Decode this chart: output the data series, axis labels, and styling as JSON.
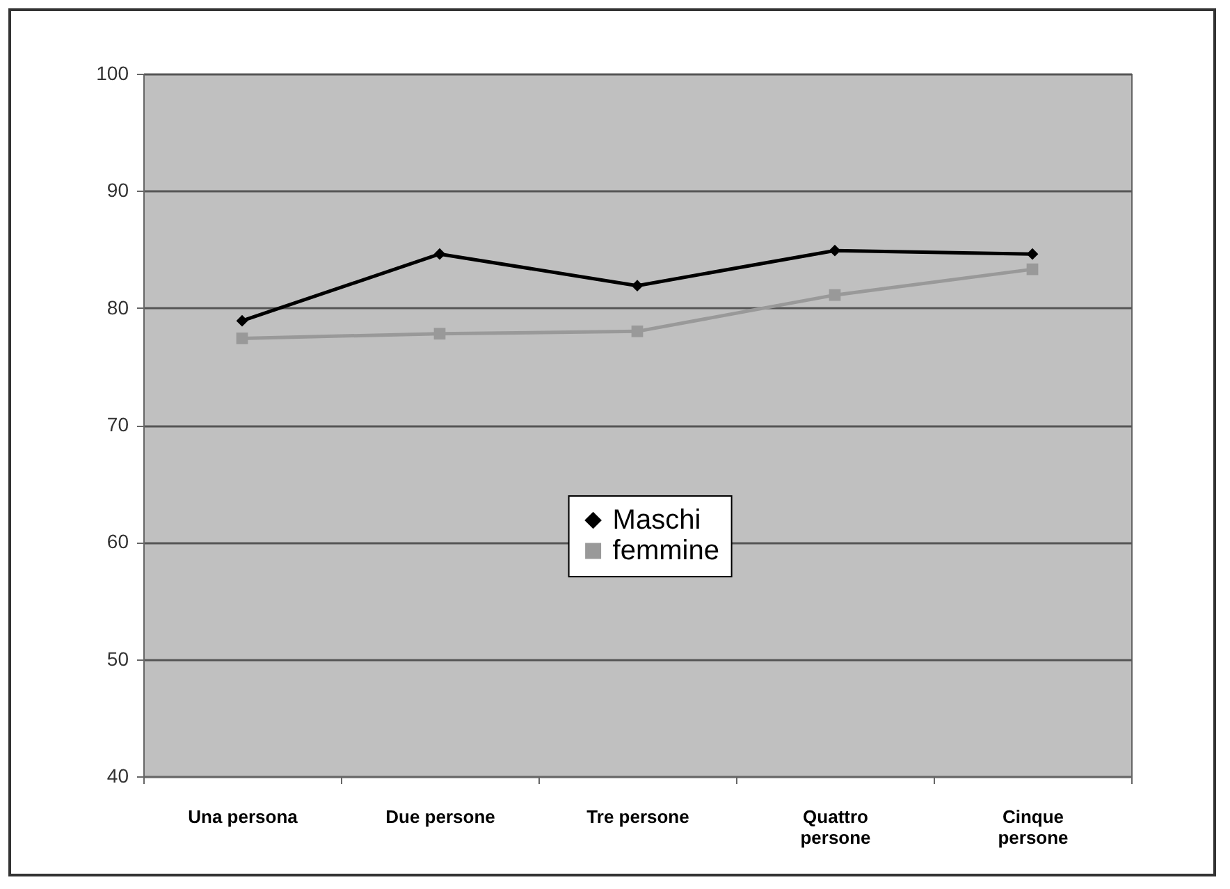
{
  "chart_data": {
    "type": "line",
    "categories": [
      "Una persona",
      "Due persone",
      "Tre persone",
      "Quattro persone",
      "Cinque persone"
    ],
    "series": [
      {
        "name": "Maschi",
        "color": "#000000",
        "marker": "diamond",
        "values": [
          78.9,
          84.6,
          81.9,
          84.9,
          84.6
        ]
      },
      {
        "name": "femmine",
        "color": "#999999",
        "marker": "square",
        "values": [
          77.4,
          77.8,
          78.0,
          81.1,
          83.3
        ]
      }
    ],
    "ylim": [
      40,
      100
    ],
    "yticks": [
      40,
      50,
      60,
      70,
      80,
      90,
      100
    ],
    "grid": "y",
    "legend": "center"
  }
}
